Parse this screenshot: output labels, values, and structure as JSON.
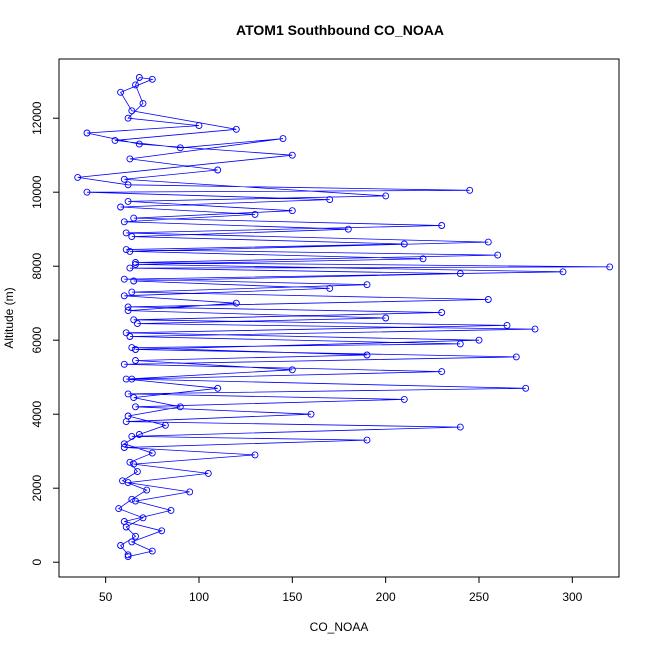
{
  "chart_data": {
    "type": "scatter",
    "title": "ATOM1 Southbound CO_NOAA",
    "xlabel": "CO_NOAA",
    "ylabel": "Altitude (m)",
    "xlim": [
      25,
      325
    ],
    "ylim": [
      -400,
      13600
    ],
    "x_ticks": [
      50,
      100,
      150,
      200,
      250,
      300
    ],
    "y_ticks": [
      0,
      2000,
      4000,
      6000,
      8000,
      10000,
      12000
    ],
    "series_color": "#0000ff",
    "marker": "open-circle",
    "connected": true,
    "grid": false,
    "legend": "none",
    "series": [
      {
        "points": [
          [
            62,
            200
          ],
          [
            58,
            450
          ],
          [
            66,
            700
          ],
          [
            61,
            950
          ],
          [
            70,
            1200
          ],
          [
            57,
            1450
          ],
          [
            64,
            1700
          ],
          [
            72,
            1950
          ],
          [
            59,
            2200
          ],
          [
            67,
            2450
          ],
          [
            63,
            2700
          ],
          [
            75,
            2950
          ],
          [
            60,
            3200
          ],
          [
            68,
            3450
          ],
          [
            82,
            3700
          ],
          [
            62,
            3950
          ],
          [
            90,
            4200
          ],
          [
            65,
            4450
          ],
          [
            110,
            4700
          ],
          [
            61,
            4950
          ],
          [
            150,
            5200
          ],
          [
            66,
            5450
          ],
          [
            190,
            5600
          ],
          [
            64,
            5800
          ],
          [
            240,
            5900
          ],
          [
            63,
            6100
          ],
          [
            280,
            6300
          ],
          [
            67,
            6450
          ],
          [
            200,
            6600
          ],
          [
            62,
            6800
          ],
          [
            120,
            7000
          ],
          [
            60,
            7200
          ],
          [
            170,
            7400
          ],
          [
            65,
            7600
          ],
          [
            240,
            7800
          ],
          [
            63,
            7950
          ],
          [
            320,
            7980
          ],
          [
            66,
            8100
          ],
          [
            260,
            8300
          ],
          [
            61,
            8450
          ],
          [
            210,
            8600
          ],
          [
            64,
            8800
          ],
          [
            180,
            9000
          ],
          [
            60,
            9200
          ],
          [
            130,
            9400
          ],
          [
            58,
            9600
          ],
          [
            170,
            9800
          ],
          [
            40,
            10000
          ],
          [
            245,
            10050
          ],
          [
            62,
            10200
          ],
          [
            35,
            10400
          ],
          [
            150,
            11000
          ],
          [
            68,
            11300
          ],
          [
            40,
            11600
          ],
          [
            100,
            11800
          ],
          [
            62,
            12000
          ],
          [
            70,
            12400
          ],
          [
            66,
            12900
          ],
          [
            68,
            13100
          ],
          [
            75,
            13050
          ],
          [
            58,
            12700
          ],
          [
            64,
            12200
          ],
          [
            120,
            11700
          ],
          [
            55,
            11400
          ],
          [
            90,
            11200
          ],
          [
            145,
            11450
          ],
          [
            63,
            10900
          ],
          [
            110,
            10600
          ],
          [
            60,
            10350
          ],
          [
            200,
            9900
          ],
          [
            62,
            9750
          ],
          [
            150,
            9500
          ],
          [
            65,
            9300
          ],
          [
            230,
            9100
          ],
          [
            61,
            8900
          ],
          [
            255,
            8650
          ],
          [
            63,
            8400
          ],
          [
            220,
            8200
          ],
          [
            66,
            8050
          ],
          [
            295,
            7850
          ],
          [
            60,
            7650
          ],
          [
            190,
            7500
          ],
          [
            64,
            7300
          ],
          [
            255,
            7100
          ],
          [
            62,
            6900
          ],
          [
            230,
            6750
          ],
          [
            65,
            6550
          ],
          [
            265,
            6400
          ],
          [
            61,
            6200
          ],
          [
            250,
            6000
          ],
          [
            66,
            5750
          ],
          [
            270,
            5550
          ],
          [
            60,
            5350
          ],
          [
            230,
            5150
          ],
          [
            64,
            4950
          ],
          [
            275,
            4700
          ],
          [
            62,
            4550
          ],
          [
            210,
            4400
          ],
          [
            66,
            4200
          ],
          [
            160,
            4000
          ],
          [
            61,
            3800
          ],
          [
            240,
            3650
          ],
          [
            64,
            3400
          ],
          [
            190,
            3300
          ],
          [
            60,
            3100
          ],
          [
            130,
            2900
          ],
          [
            65,
            2650
          ],
          [
            105,
            2400
          ],
          [
            62,
            2150
          ],
          [
            95,
            1900
          ],
          [
            66,
            1650
          ],
          [
            85,
            1400
          ],
          [
            60,
            1100
          ],
          [
            80,
            850
          ],
          [
            64,
            550
          ],
          [
            75,
            300
          ],
          [
            62,
            150
          ]
        ]
      }
    ]
  }
}
